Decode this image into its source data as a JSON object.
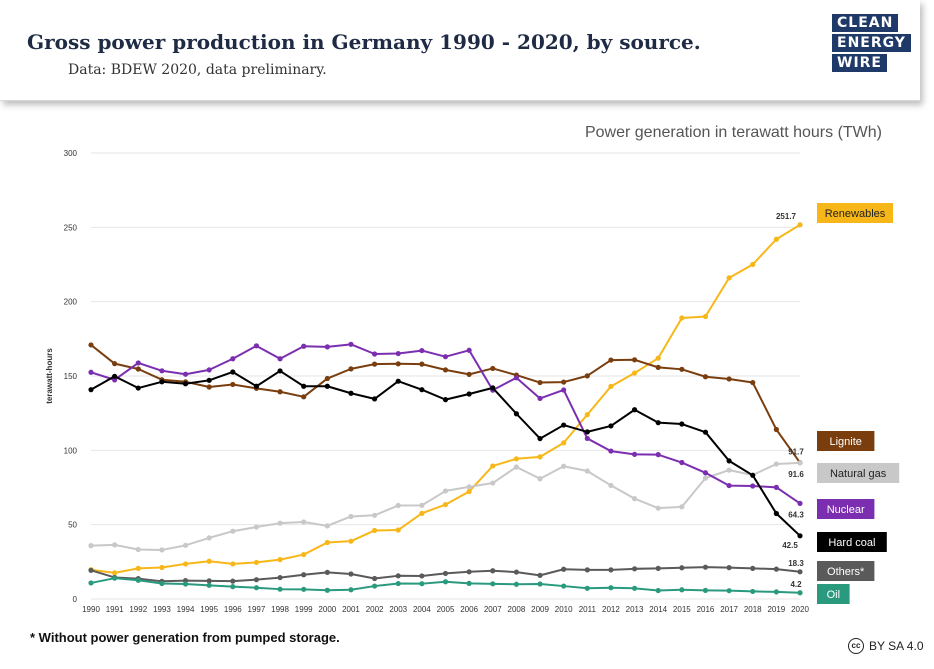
{
  "header": {
    "title": "Gross power production in Germany 1990 - 2020, by source.",
    "subtitle": "Data: BDEW 2020, data preliminary.",
    "logo_lines": [
      "CLEAN",
      "ENERGY",
      "WIRE"
    ]
  },
  "footer": {
    "footnote": "* Without power generation from pumped storage.",
    "license": "BY SA 4.0",
    "license_icon": "cc-icon"
  },
  "chart_data": {
    "type": "line",
    "title": "Power generation in terawatt hours (TWh)",
    "xlabel": "",
    "ylabel": "terawatt-hours",
    "ylim": [
      0,
      300
    ],
    "yticks": [
      0,
      50,
      100,
      150,
      200,
      250,
      300
    ],
    "grid": true,
    "x": [
      1990,
      1991,
      1992,
      1993,
      1994,
      1995,
      1996,
      1997,
      1998,
      1999,
      2000,
      2001,
      2002,
      2003,
      2004,
      2005,
      2006,
      2007,
      2008,
      2009,
      2010,
      2011,
      2012,
      2013,
      2014,
      2015,
      2016,
      2017,
      2018,
      2019,
      2020
    ],
    "series": [
      {
        "name": "Renewables",
        "color": "#f7b718",
        "label_color": "#f7b718",
        "label_text": "#222222",
        "end_value": "251.7",
        "values": [
          19.7,
          17.6,
          20.6,
          21.2,
          23.6,
          25.4,
          23.6,
          24.6,
          26.5,
          29.9,
          38.0,
          38.9,
          46.1,
          46.4,
          57.6,
          63.5,
          72.3,
          89.5,
          94.3,
          95.6,
          105.0,
          124.0,
          143.0,
          152.0,
          162.0,
          189.0,
          190.0,
          216.0,
          225.0,
          242.0,
          251.7
        ]
      },
      {
        "name": "Lignite",
        "color": "#7a3e0e",
        "label_color": "#7a3e0e",
        "label_text": "#ffffff",
        "end_value": "91.7",
        "values": [
          170.9,
          158.3,
          154.7,
          147.5,
          146.1,
          142.6,
          144.3,
          141.7,
          139.4,
          136.0,
          148.3,
          154.8,
          158.0,
          158.2,
          158.0,
          154.1,
          151.1,
          155.1,
          150.6,
          145.6,
          145.9,
          150.1,
          160.7,
          160.9,
          155.8,
          154.5,
          149.5,
          148.0,
          145.6,
          114.0,
          91.7
        ]
      },
      {
        "name": "Natural gas",
        "color": "#c8c8c8",
        "label_color": "#c8c8c8",
        "label_text": "#222222",
        "end_value": "91.6",
        "values": [
          35.9,
          36.4,
          33.3,
          33.0,
          36.1,
          41.1,
          45.6,
          48.4,
          51.0,
          51.8,
          49.2,
          55.5,
          56.3,
          62.9,
          63.0,
          72.7,
          75.4,
          78.0,
          88.8,
          80.9,
          89.3,
          86.1,
          76.4,
          67.5,
          61.1,
          62.0,
          81.3,
          86.7,
          83.4,
          90.8,
          91.6
        ]
      },
      {
        "name": "Nuclear",
        "color": "#7b2fb0",
        "label_color": "#7b2fb0",
        "label_text": "#ffffff",
        "end_value": "64.3",
        "values": [
          152.5,
          147.4,
          158.8,
          153.5,
          151.2,
          154.1,
          161.6,
          170.3,
          161.6,
          170.0,
          169.6,
          171.3,
          164.8,
          165.1,
          167.1,
          163.0,
          167.3,
          140.5,
          148.8,
          134.9,
          140.6,
          108.0,
          99.5,
          97.3,
          97.1,
          91.8,
          84.9,
          76.3,
          76.0,
          75.1,
          64.3
        ]
      },
      {
        "name": "Hard coal",
        "color": "#000000",
        "label_color": "#000000",
        "label_text": "#ffffff",
        "end_value": "42.5",
        "values": [
          140.8,
          149.8,
          141.9,
          146.1,
          144.8,
          147.1,
          152.7,
          143.1,
          153.4,
          143.1,
          143.1,
          138.4,
          134.6,
          146.5,
          140.8,
          134.1,
          137.9,
          142.0,
          124.6,
          107.9,
          117.0,
          112.4,
          116.4,
          127.3,
          118.6,
          117.7,
          112.2,
          92.9,
          83.2,
          57.5,
          42.5
        ]
      },
      {
        "name": "Others*",
        "color": "#5a5a5a",
        "label_color": "#5a5a5a",
        "label_text": "#ffffff",
        "end_value": "18.3",
        "values": [
          19.3,
          14.5,
          13.7,
          11.9,
          12.4,
          12.2,
          12.0,
          13.0,
          14.4,
          16.3,
          17.9,
          16.8,
          13.8,
          15.6,
          15.5,
          17.2,
          18.3,
          19.0,
          18.1,
          15.9,
          20.0,
          19.6,
          19.6,
          20.3,
          20.6,
          21.0,
          21.4,
          21.1,
          20.6,
          20.1,
          18.3
        ]
      },
      {
        "name": "Oil",
        "color": "#2a9a7f",
        "label_color": "#2a9a7f",
        "label_text": "#ffffff",
        "end_value": "4.2",
        "values": [
          10.8,
          14.0,
          12.6,
          10.4,
          10.1,
          9.2,
          8.3,
          7.6,
          6.6,
          6.5,
          5.9,
          6.2,
          8.7,
          10.4,
          10.3,
          11.6,
          10.5,
          10.2,
          9.9,
          10.1,
          8.7,
          7.2,
          7.6,
          7.2,
          5.7,
          6.2,
          5.8,
          5.6,
          5.1,
          4.8,
          4.2
        ]
      }
    ]
  }
}
